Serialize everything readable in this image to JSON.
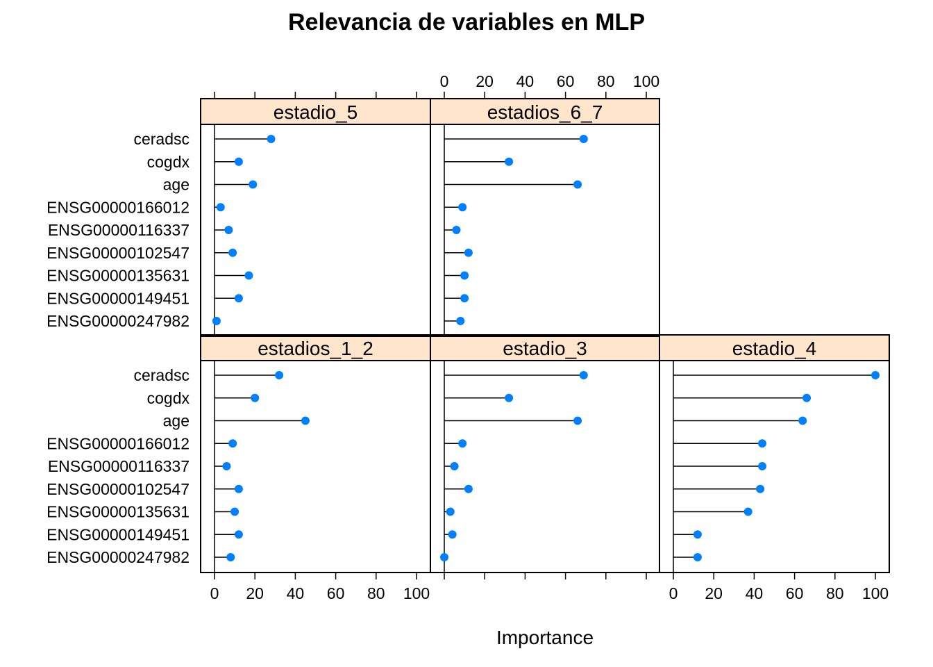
{
  "chart_data": {
    "type": "dot",
    "title": "Relevancia de variables en MLP",
    "xlabel": "Importance",
    "ylabel": "",
    "xlim": [
      0,
      100
    ],
    "x_ticks": [
      "0",
      "20",
      "40",
      "60",
      "80",
      "100"
    ],
    "categories": [
      "ceradsc",
      "cogdx",
      "age",
      "ENSG00000166012",
      "ENSG00000116337",
      "ENSG00000102547",
      "ENSG00000135631",
      "ENSG00000149451",
      "ENSG00000247982"
    ],
    "panels": [
      {
        "name": "estadios_1_2",
        "values": [
          32,
          20,
          45,
          9,
          6,
          12,
          10,
          12,
          8
        ]
      },
      {
        "name": "estadio_3",
        "values": [
          69,
          32,
          66,
          9,
          5,
          12,
          3,
          4,
          0
        ]
      },
      {
        "name": "estadio_4",
        "values": [
          100,
          66,
          64,
          44,
          44,
          43,
          37,
          12,
          12
        ]
      },
      {
        "name": "estadio_5",
        "values": [
          28,
          12,
          19,
          3,
          7,
          9,
          17,
          12,
          1
        ]
      },
      {
        "name": "estadios_6_7",
        "values": [
          69,
          32,
          66,
          9,
          6,
          12,
          10,
          10,
          8
        ]
      }
    ],
    "colors": {
      "point": "#0080ff",
      "strip": "#ffe5cc",
      "line": "#000000"
    },
    "grid": false,
    "legend": "none"
  }
}
